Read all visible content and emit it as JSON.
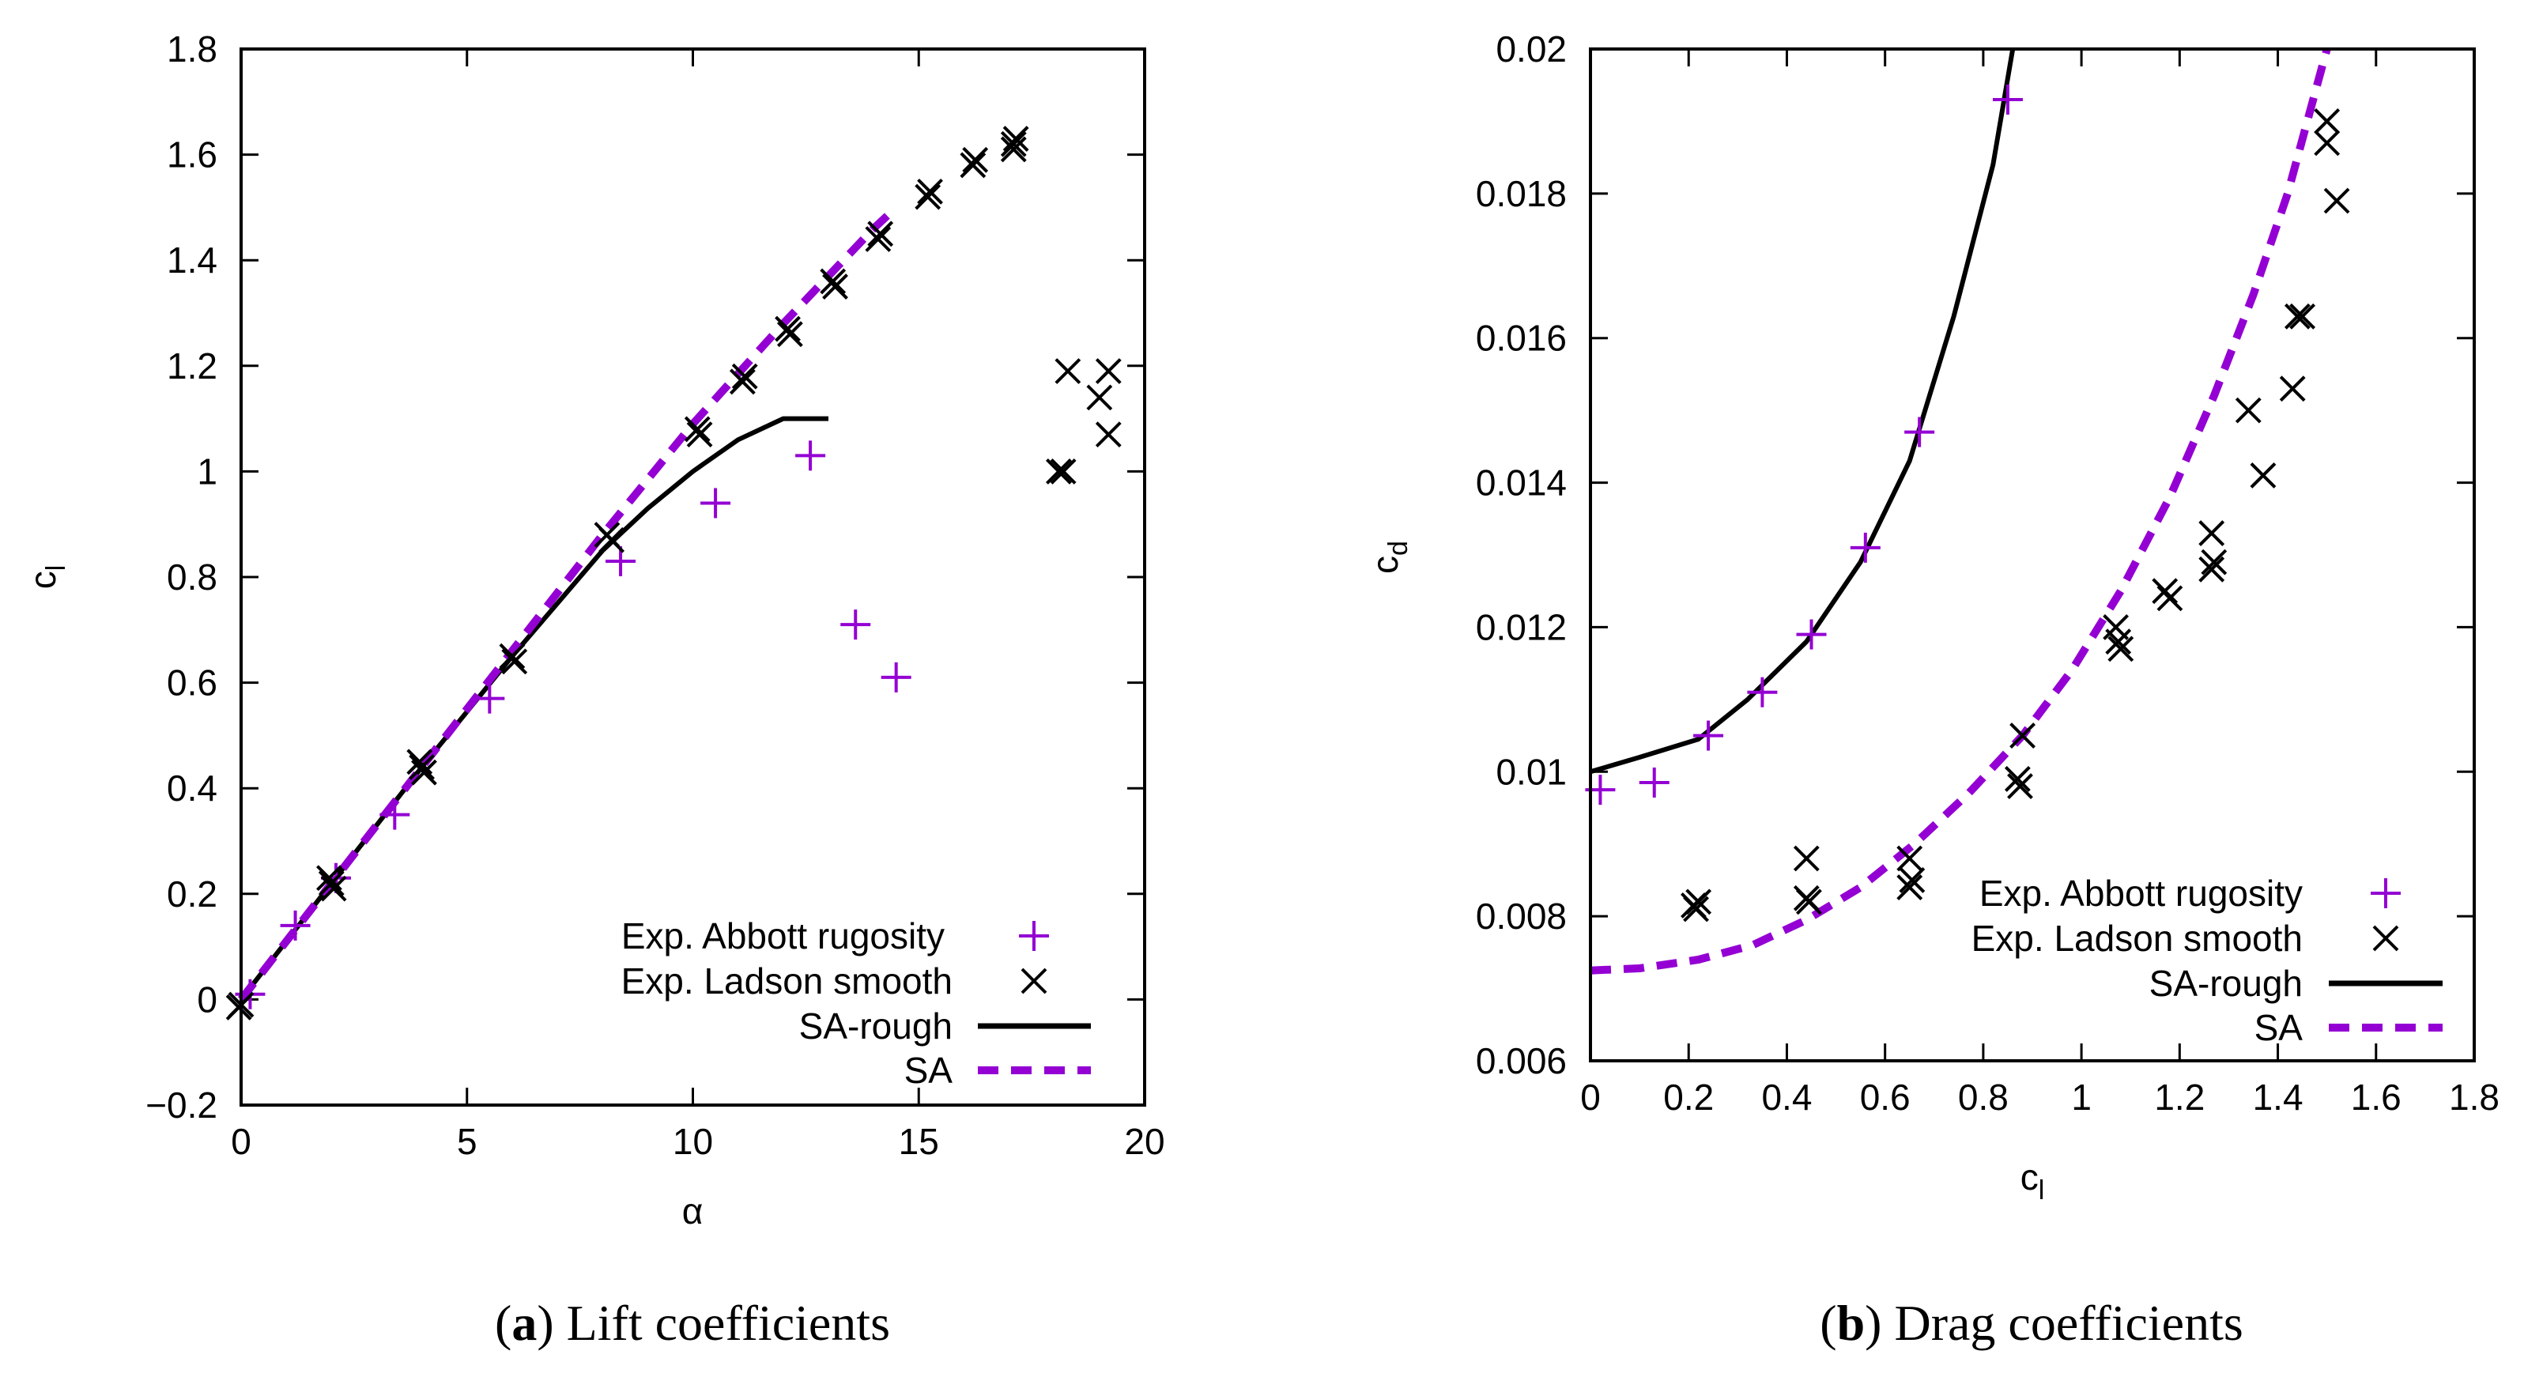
{
  "colors": {
    "purple": "#9400d3",
    "black": "#000000"
  },
  "chart_data": [
    {
      "type": "scatter",
      "id": "lift",
      "caption_label": "a",
      "caption_text": " Lift coefficients",
      "xlabel": "α",
      "ylabel_main": "c",
      "ylabel_sub": "l",
      "xlim": [
        0,
        20
      ],
      "ylim": [
        -0.2,
        1.8
      ],
      "x_ticks": [
        0,
        5,
        10,
        15,
        20
      ],
      "x_tick_labels": [
        "0",
        "5",
        "10",
        "15",
        "20"
      ],
      "y_ticks": [
        -0.2,
        0,
        0.2,
        0.4,
        0.6,
        0.8,
        1,
        1.2,
        1.4,
        1.6,
        1.8
      ],
      "y_tick_labels": [
        "−0.2",
        "0",
        "0.2",
        "0.4",
        "0.6",
        "0.8",
        "1",
        "1.2",
        "1.4",
        "1.6",
        "1.8"
      ],
      "legend_position": "bottom-right",
      "series": [
        {
          "name": "Exp. Abbott rugosity",
          "marker": "plus",
          "color": "#9400d3",
          "points": [
            [
              0.2,
              0.01
            ],
            [
              1.2,
              0.14
            ],
            [
              2.1,
              0.23
            ],
            [
              3.4,
              0.35
            ],
            [
              5.5,
              0.57
            ],
            [
              8.4,
              0.83
            ],
            [
              10.5,
              0.94
            ],
            [
              12.6,
              1.03
            ],
            [
              13.6,
              0.71
            ],
            [
              14.5,
              0.61
            ]
          ]
        },
        {
          "name": "Exp. Ladson smooth",
          "marker": "cross",
          "color": "#000000",
          "points": [
            [
              0.0,
              -0.01
            ],
            [
              -0.05,
              -0.015
            ],
            [
              2.0,
              0.22
            ],
            [
              2.05,
              0.21
            ],
            [
              1.95,
              0.23
            ],
            [
              4.0,
              0.44
            ],
            [
              4.05,
              0.43
            ],
            [
              3.95,
              0.45
            ],
            [
              6.0,
              0.65
            ],
            [
              6.05,
              0.64
            ],
            [
              8.1,
              0.88
            ],
            [
              8.2,
              0.87
            ],
            [
              10.1,
              1.08
            ],
            [
              10.15,
              1.07
            ],
            [
              11.1,
              1.17
            ],
            [
              11.15,
              1.18
            ],
            [
              12.1,
              1.27
            ],
            [
              12.15,
              1.26
            ],
            [
              13.1,
              1.36
            ],
            [
              13.15,
              1.35
            ],
            [
              14.1,
              1.44
            ],
            [
              14.15,
              1.45
            ],
            [
              15.2,
              1.52
            ],
            [
              15.25,
              1.53
            ],
            [
              16.2,
              1.58
            ],
            [
              16.25,
              1.59
            ],
            [
              17.1,
              1.62
            ],
            [
              17.15,
              1.63
            ],
            [
              17.1,
              1.61
            ],
            [
              18.1,
              1.0
            ],
            [
              18.2,
              1.0
            ],
            [
              18.3,
              1.19
            ],
            [
              19.0,
              1.14
            ],
            [
              19.2,
              1.19
            ],
            [
              19.2,
              1.07
            ]
          ]
        },
        {
          "name": "SA-rough",
          "line": "solid",
          "color": "#000000",
          "points": [
            [
              0,
              0
            ],
            [
              2,
              0.22
            ],
            [
              4,
              0.44
            ],
            [
              6,
              0.65
            ],
            [
              8,
              0.85
            ],
            [
              9,
              0.93
            ],
            [
              10,
              1.0
            ],
            [
              11,
              1.06
            ],
            [
              12,
              1.1
            ],
            [
              12.5,
              1.1
            ],
            [
              13,
              1.1
            ]
          ]
        },
        {
          "name": "SA",
          "line": "dashed",
          "color": "#9400d3",
          "points": [
            [
              0,
              0
            ],
            [
              2,
              0.22
            ],
            [
              4,
              0.44
            ],
            [
              6,
              0.66
            ],
            [
              8,
              0.88
            ],
            [
              10,
              1.09
            ],
            [
              12,
              1.28
            ],
            [
              14,
              1.46
            ],
            [
              14.5,
              1.5
            ]
          ]
        }
      ]
    },
    {
      "type": "scatter",
      "id": "drag",
      "caption_label": "b",
      "caption_text": " Drag coefficients",
      "xlabel_main": "c",
      "xlabel_sub": "l",
      "ylabel_main": "c",
      "ylabel_sub": "d",
      "xlim": [
        0,
        1.8
      ],
      "ylim": [
        0.006,
        0.02
      ],
      "x_ticks": [
        0,
        0.2,
        0.4,
        0.6,
        0.8,
        1,
        1.2,
        1.4,
        1.6,
        1.8
      ],
      "x_tick_labels": [
        "0",
        "0.2",
        "0.4",
        "0.6",
        "0.8",
        "1",
        "1.2",
        "1.4",
        "1.6",
        "1.8"
      ],
      "y_ticks": [
        0.006,
        0.008,
        0.01,
        0.012,
        0.014,
        0.016,
        0.018,
        0.02
      ],
      "y_tick_labels": [
        "0.006",
        "0.008",
        "0.01",
        "0.012",
        "0.014",
        "0.016",
        "0.018",
        "0.02"
      ],
      "legend_position": "bottom-right",
      "series": [
        {
          "name": "Exp. Abbott rugosity",
          "marker": "plus",
          "color": "#9400d3",
          "points": [
            [
              0.02,
              0.00975
            ],
            [
              0.13,
              0.00985
            ],
            [
              0.24,
              0.0105
            ],
            [
              0.35,
              0.0111
            ],
            [
              0.45,
              0.0119
            ],
            [
              0.56,
              0.0131
            ],
            [
              0.67,
              0.0147
            ],
            [
              0.85,
              0.0193
            ]
          ]
        },
        {
          "name": "Exp. Ladson smooth",
          "marker": "cross",
          "color": "#000000",
          "points": [
            [
              0.21,
              0.00815
            ],
            [
              0.22,
              0.0082
            ],
            [
              0.215,
              0.0081
            ],
            [
              0.44,
              0.00825
            ],
            [
              0.445,
              0.0082
            ],
            [
              0.44,
              0.0088
            ],
            [
              0.65,
              0.0084
            ],
            [
              0.655,
              0.0085
            ],
            [
              0.65,
              0.0088
            ],
            [
              0.87,
              0.0099
            ],
            [
              0.875,
              0.0098
            ],
            [
              0.88,
              0.0105
            ],
            [
              1.07,
              0.012
            ],
            [
              1.08,
              0.0117
            ],
            [
              1.075,
              0.0118
            ],
            [
              1.17,
              0.0125
            ],
            [
              1.18,
              0.0124
            ],
            [
              1.265,
              0.0133
            ],
            [
              1.27,
              0.0129
            ],
            [
              1.265,
              0.0128
            ],
            [
              1.34,
              0.015
            ],
            [
              1.37,
              0.0141
            ],
            [
              1.43,
              0.0153
            ],
            [
              1.44,
              0.0163
            ],
            [
              1.45,
              0.0163
            ],
            [
              1.5,
              0.019
            ],
            [
              1.5,
              0.0187
            ],
            [
              1.52,
              0.0179
            ]
          ]
        },
        {
          "name": "SA-rough",
          "line": "solid",
          "color": "#000000",
          "points": [
            [
              0.0,
              0.01
            ],
            [
              0.1,
              0.0102
            ],
            [
              0.22,
              0.01045
            ],
            [
              0.32,
              0.011
            ],
            [
              0.44,
              0.0118
            ],
            [
              0.55,
              0.0129
            ],
            [
              0.65,
              0.0143
            ],
            [
              0.74,
              0.0163
            ],
            [
              0.82,
              0.0184
            ],
            [
              0.86,
              0.02
            ]
          ]
        },
        {
          "name": "SA",
          "line": "dashed",
          "color": "#9400d3",
          "points": [
            [
              0.0,
              0.00725
            ],
            [
              0.1,
              0.00728
            ],
            [
              0.22,
              0.0074
            ],
            [
              0.33,
              0.0076
            ],
            [
              0.44,
              0.00795
            ],
            [
              0.55,
              0.0084
            ],
            [
              0.66,
              0.009
            ],
            [
              0.77,
              0.0097
            ],
            [
              0.88,
              0.0105
            ],
            [
              0.98,
              0.0114
            ],
            [
              1.08,
              0.0125
            ],
            [
              1.18,
              0.0138
            ],
            [
              1.27,
              0.0152
            ],
            [
              1.35,
              0.0166
            ],
            [
              1.42,
              0.018
            ],
            [
              1.48,
              0.0195
            ],
            [
              1.5,
              0.02
            ]
          ]
        }
      ]
    }
  ]
}
